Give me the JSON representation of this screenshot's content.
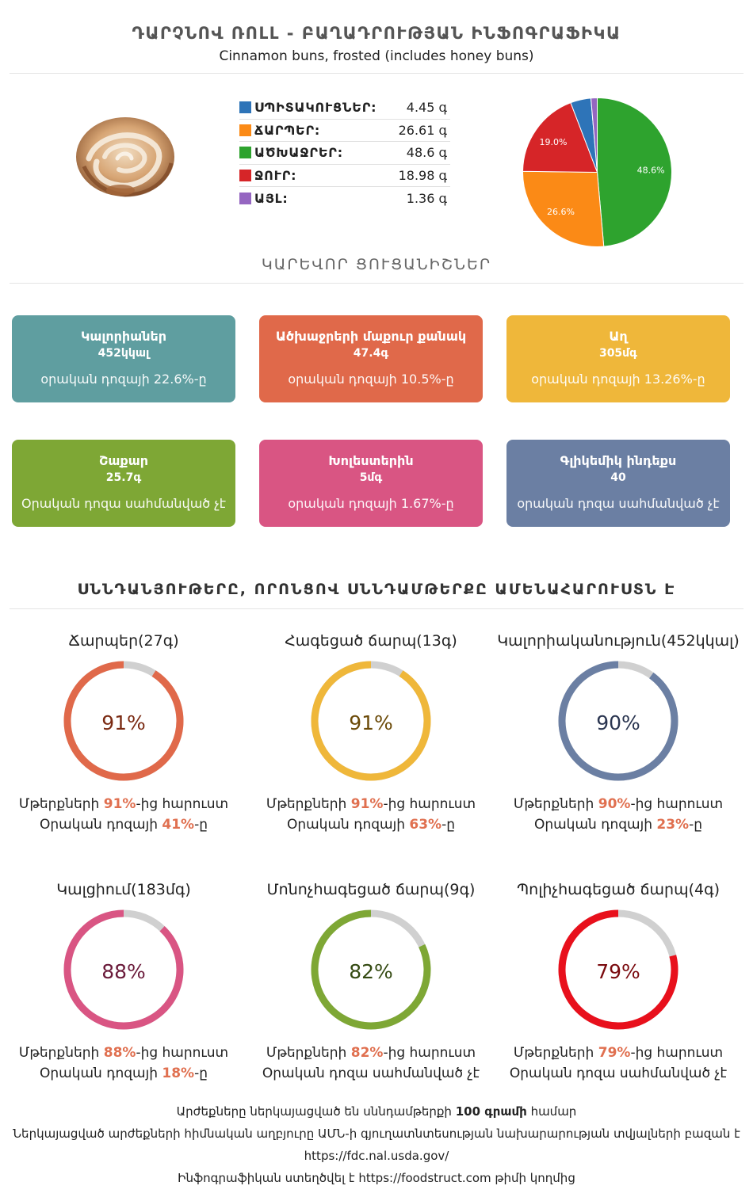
{
  "header": {
    "title": "ԴԱՐՉՆՈՎ ՌՈԼԼ - ԲԱՂԱԴՐՈՒԹՅԱՆ ԻՆՖՈԳՐԱՖԻԿԱ",
    "subtitle": "Cinnamon buns, frosted (includes honey buns)"
  },
  "composition": {
    "items": [
      {
        "label": "ՍՊԻՏԱԿՈՒՑՆԵՐ:",
        "value": "4.45 գ",
        "amount": 4.45,
        "color": "#2e74b8"
      },
      {
        "label": "ՃԱՐՊԵՐ:",
        "value": "26.61 գ",
        "amount": 26.61,
        "color": "#fb8a16"
      },
      {
        "label": "ԱԾԽԱՋՐԵՐ:",
        "value": "48.6 գ",
        "amount": 48.6,
        "color": "#2ea32e"
      },
      {
        "label": "ՋՈՒՐ:",
        "value": "18.98 գ",
        "amount": 18.98,
        "color": "#d62528"
      },
      {
        "label": "ԱՅԼ:",
        "value": "1.36 գ",
        "amount": 1.36,
        "color": "#9566c1"
      }
    ],
    "pie_labels": [
      "48.6%",
      "26.6%",
      "19.0%"
    ]
  },
  "key": {
    "title": "ԿԱՐԵՎՈՐ ՑՈՒՑԱՆԻՇՆԵՐ",
    "cards": [
      {
        "label": "Կալորիաներ",
        "value": "452կկալ",
        "daily": "օրական դոզայի 22.6%-ը",
        "color": "#5f9ea0"
      },
      {
        "label": "Ածխաջրերի մաքուր քանակ",
        "value": "47.4գ",
        "daily": "օրական դոզայի 10.5%-ը",
        "color": "#e0694a"
      },
      {
        "label": "Աղ",
        "value": "305մգ",
        "daily": "օրական դոզայի 13.26%-ը",
        "color": "#efb73a"
      },
      {
        "label": "Շաքար",
        "value": "25.7գ",
        "daily": "Օրական դոզա սահմանված չէ",
        "color": "#7ea735"
      },
      {
        "label": "Խոլեստերին",
        "value": "5մգ",
        "daily": "օրական դոզայի 1.67%-ը",
        "color": "#d95583"
      },
      {
        "label": "Գլիկեմիկ ինդեքս",
        "value": "40",
        "daily": "օրական դոզա սահմանված չէ",
        "color": "#6b7fa3"
      }
    ]
  },
  "rich": {
    "title": "ՍՆՆԴԱՆՅՈՒԹԵՐԸ, ՈՐՈՆՑՈՎ ՍՆՆԴԱՄԹԵՐՔԸ ԱՄԵՆԱՀԱՐՈՒՍՏՆ Է",
    "items": [
      {
        "name": "Ճարպեր(27գ)",
        "percent": 91,
        "percent_label": "91%",
        "color": "#e0694a",
        "text_color": "#7a2a12",
        "line1_pre": "Մթերքների ",
        "line1_bold": "91%",
        "line1_post": "-ից հարուստ",
        "line2_pre": "Օրական դոզայի ",
        "line2_bold": "41%",
        "line2_post": "-ը"
      },
      {
        "name": "Հագեցած ճարպ(13գ)",
        "percent": 91,
        "percent_label": "91%",
        "color": "#efb73a",
        "text_color": "#6b4a08",
        "line1_pre": "Մթերքների ",
        "line1_bold": "91%",
        "line1_post": "-ից հարուստ",
        "line2_pre": "Օրական դոզայի ",
        "line2_bold": "63%",
        "line2_post": "-ը"
      },
      {
        "name": "Կալորիականություն(452կկալ)",
        "percent": 90,
        "percent_label": "90%",
        "color": "#6b7fa3",
        "text_color": "#2a3550",
        "line1_pre": "Մթերքների ",
        "line1_bold": "90%",
        "line1_post": "-ից հարուստ",
        "line2_pre": "Օրական դոզայի ",
        "line2_bold": "23%",
        "line2_post": "-ը"
      },
      {
        "name": "Կալցիում(183մգ)",
        "percent": 88,
        "percent_label": "88%",
        "color": "#d95583",
        "text_color": "#6a1a3a",
        "line1_pre": "Մթերքների ",
        "line1_bold": "88%",
        "line1_post": "-ից հարուստ",
        "line2_pre": "Օրական դոզայի ",
        "line2_bold": "18%",
        "line2_post": "-ը"
      },
      {
        "name": "Մոնոչհագեցած ճարպ(9գ)",
        "percent": 82,
        "percent_label": "82%",
        "color": "#7ea735",
        "text_color": "#344a12",
        "line1_pre": "Մթերքների ",
        "line1_bold": "82%",
        "line1_post": "-ից հարուստ",
        "line2_pre": "Օրական դոզա սահմանված չէ",
        "line2_bold": "",
        "line2_post": ""
      },
      {
        "name": "Պոլիչհագեցած ճարպ(4գ)",
        "percent": 79,
        "percent_label": "79%",
        "color": "#e8101c",
        "text_color": "#7a0a0e",
        "line1_pre": "Մթերքների ",
        "line1_bold": "79%",
        "line1_post": "-ից հարուստ",
        "line2_pre": "Օրական դոզա սահմանված չէ",
        "line2_bold": "",
        "line2_post": ""
      }
    ]
  },
  "footer": {
    "line1_pre": "Արժեքները ներկայացված են սննդամթերքի ",
    "line1_bold": "100 գրամի",
    "line1_post": " համար",
    "line2": "Ներկայացված արժեքների հիմնական աղբյուրը ԱՄՆ-ի գյուղատնտեսության նախարարության տվյալների բազան է",
    "line3": "https://fdc.nal.usda.gov/",
    "line4_pre": "Ինֆոգրաֆիկան ստեղծվել է ",
    "line4_link": "https://foodstruct.com",
    "line4_post": " թիմի կողմից"
  }
}
